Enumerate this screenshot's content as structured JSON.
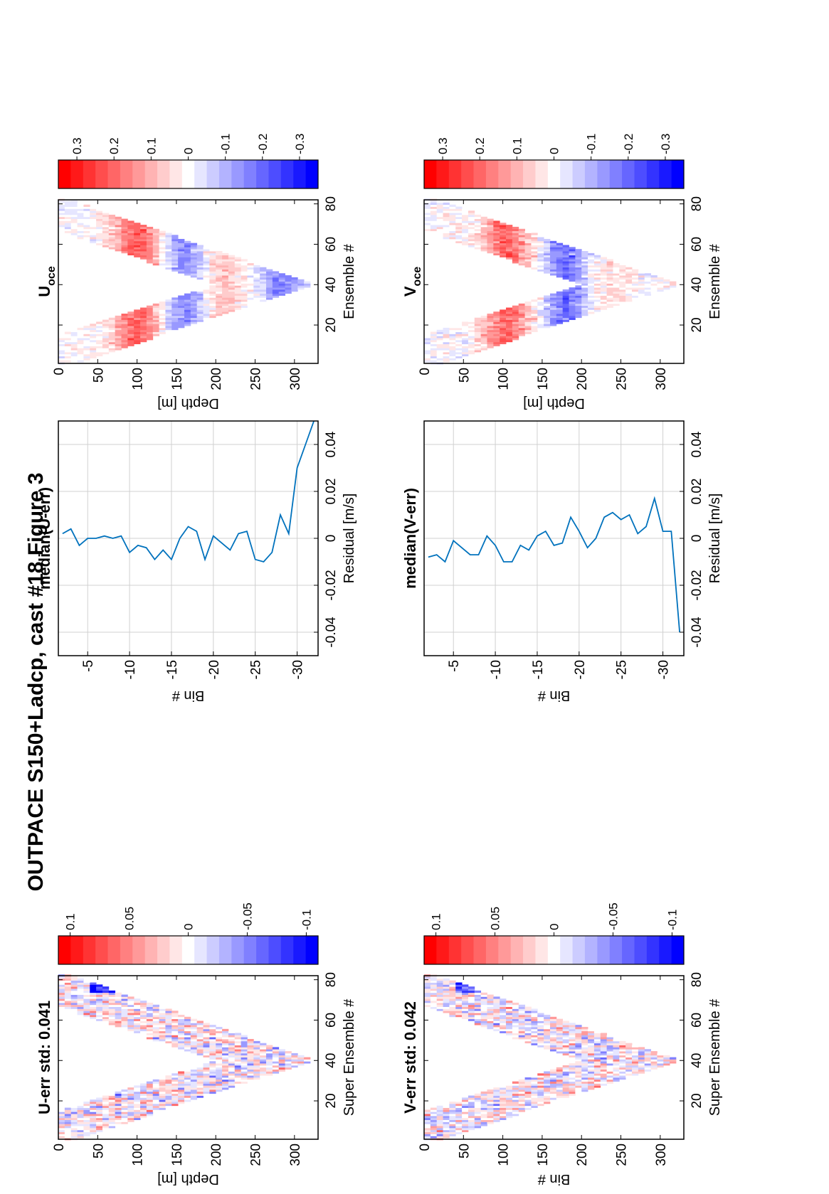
{
  "figure": {
    "title": "OUTPACE S150+Ladcp, cast #18  Figure 3"
  },
  "colors": {
    "line": "#0072BD",
    "red": "#ff0000",
    "white": "#ffffff",
    "blue": "#0000ff",
    "grid": "#d0d0d0"
  },
  "chart_data": [
    {
      "id": "uerr-map",
      "type": "heatmap",
      "title": "U-err std: 0.041",
      "xlabel": "Super Ensemble #",
      "ylabel": "Depth [m]",
      "xlim": [
        1,
        82
      ],
      "ylim": [
        0,
        330
      ],
      "xticks": [
        "20",
        "40",
        "60",
        "80"
      ],
      "yticks": [
        "0",
        "50",
        "100",
        "150",
        "200",
        "250",
        "300"
      ],
      "clim": [
        -0.11,
        0.11
      ],
      "colorbar_ticks": [
        "0.1",
        "0.05",
        "0",
        "-0.05",
        "-0.1"
      ],
      "pattern": "noisy residual within V-shaped sampled region; deepest at ensemble ~40 (~320 m); strong negative patch near 80 at ~60-80 m"
    },
    {
      "id": "uerr-profile",
      "type": "line",
      "title": "median(U-err)",
      "xlabel": "Residual [m/s]",
      "ylabel": "Bin #",
      "xlim": [
        -0.05,
        0.05
      ],
      "ylim": [
        -32.5,
        -1.5
      ],
      "xticks": [
        "-0.04",
        "-0.02",
        "0",
        "0.02",
        "0.04"
      ],
      "yticks": [
        "-5",
        "-10",
        "-15",
        "-20",
        "-25",
        "-30"
      ],
      "series": [
        {
          "bins": [
            -2,
            -3,
            -4,
            -5,
            -6,
            -7,
            -8,
            -9,
            -10,
            -11,
            -12,
            -13,
            -14,
            -15,
            -16,
            -17,
            -18,
            -19,
            -20,
            -21,
            -22,
            -23,
            -24,
            -25,
            -26,
            -27,
            -28,
            -29,
            -30,
            -31,
            -32
          ],
          "values": [
            0.002,
            0.004,
            -0.003,
            0.0,
            0.0,
            0.001,
            0.0,
            0.001,
            -0.006,
            -0.003,
            -0.004,
            -0.009,
            -0.005,
            -0.009,
            0.0,
            0.005,
            0.003,
            -0.009,
            0.001,
            -0.002,
            -0.005,
            0.002,
            0.003,
            -0.009,
            -0.01,
            -0.006,
            0.01,
            0.002,
            0.03,
            0.04,
            0.05
          ]
        }
      ]
    },
    {
      "id": "uoce-map",
      "type": "heatmap",
      "title": "U_oce",
      "xlabel": "Ensemble #",
      "ylabel": "Depth [m]",
      "xlim": [
        1,
        82
      ],
      "ylim": [
        0,
        330
      ],
      "xticks": [
        "20",
        "40",
        "60",
        "80"
      ],
      "yticks": [
        "0",
        "50",
        "100",
        "150",
        "200",
        "250",
        "300"
      ],
      "clim": [
        -0.35,
        0.35
      ],
      "colorbar_ticks": [
        "0.3",
        "0.2",
        "0.1",
        "0",
        "-0.1",
        "-0.2",
        "-0.3"
      ],
      "pattern": "banded ocean velocity: positive near 100 m, negative near 150 m, positive near 200 m, negative near 280 m"
    },
    {
      "id": "verr-map",
      "type": "heatmap",
      "title": "V-err std: 0.042",
      "xlabel": "Super Ensemble #",
      "ylabel": "Bin #",
      "xlim": [
        1,
        82
      ],
      "ylim": [
        0,
        330
      ],
      "xticks": [
        "20",
        "40",
        "60",
        "80"
      ],
      "yticks": [
        "0",
        "50",
        "100",
        "150",
        "200",
        "250",
        "300"
      ],
      "clim": [
        -0.11,
        0.11
      ],
      "colorbar_ticks": [
        "0.1",
        "0.05",
        "0",
        "-0.05",
        "-0.1"
      ],
      "pattern": "noisy residual within V-shaped sampled region; strong negative patch near ensemble 80 at ~60-80 m"
    },
    {
      "id": "verr-profile",
      "type": "line",
      "title": "median(V-err)",
      "xlabel": "Residual [m/s]",
      "ylabel": "Bin #",
      "xlim": [
        -0.05,
        0.05
      ],
      "ylim": [
        -32.5,
        -1.5
      ],
      "xticks": [
        "-0.04",
        "-0.02",
        "0",
        "0.02",
        "0.04"
      ],
      "yticks": [
        "-5",
        "-10",
        "-15",
        "-20",
        "-25",
        "-30"
      ],
      "series": [
        {
          "bins": [
            -2,
            -3,
            -4,
            -5,
            -6,
            -7,
            -8,
            -9,
            -10,
            -11,
            -12,
            -13,
            -14,
            -15,
            -16,
            -17,
            -18,
            -19,
            -20,
            -21,
            -22,
            -23,
            -24,
            -25,
            -26,
            -27,
            -28,
            -29,
            -30,
            -31,
            -32
          ],
          "values": [
            -0.008,
            -0.007,
            -0.01,
            -0.001,
            -0.004,
            -0.007,
            -0.007,
            0.001,
            -0.003,
            -0.01,
            -0.01,
            -0.003,
            -0.005,
            0.001,
            0.003,
            -0.003,
            -0.002,
            0.009,
            0.003,
            -0.004,
            0.0,
            0.009,
            0.011,
            0.008,
            0.01,
            0.002,
            0.005,
            0.017,
            0.003,
            0.003,
            -0.04
          ]
        }
      ]
    },
    {
      "id": "voce-map",
      "type": "heatmap",
      "title": "V_oce",
      "xlabel": "Ensemble #",
      "ylabel": "Depth [m]",
      "xlim": [
        1,
        82
      ],
      "ylim": [
        0,
        330
      ],
      "xticks": [
        "20",
        "40",
        "60",
        "80"
      ],
      "yticks": [
        "0",
        "50",
        "100",
        "150",
        "200",
        "250",
        "300"
      ],
      "clim": [
        -0.35,
        0.35
      ],
      "colorbar_ticks": [
        "0.3",
        "0.2",
        "0.1",
        "0",
        "-0.1",
        "-0.2",
        "-0.3"
      ],
      "pattern": "banded ocean velocity: positive near 100 m, negative near 180 m, weak mixed below"
    }
  ]
}
